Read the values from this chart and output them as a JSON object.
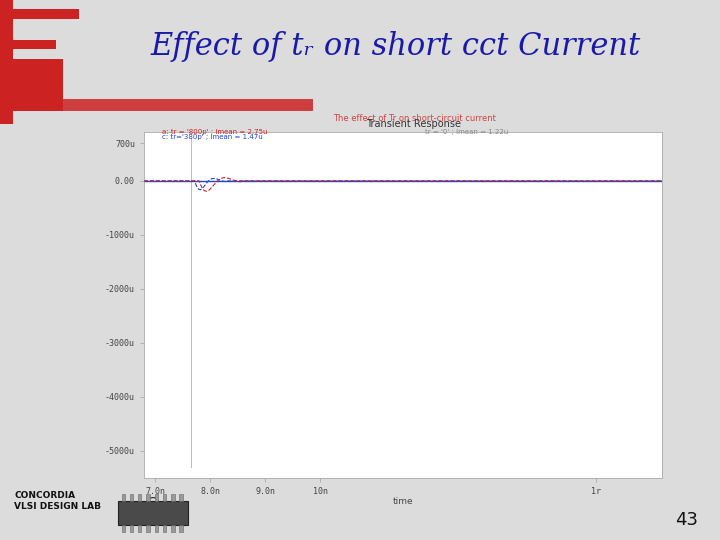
{
  "title_main": "Effect of tᵣ on short cct Current",
  "title_main_fontsize": 22,
  "title_main_color": "#1a1aaa",
  "slide_bg": "#dcdcdc",
  "header_bg": "#ffffff",
  "green_bar_color": "#44bb00",
  "red_accent_color": "#cc2222",
  "plot_title_top": "The effect of Tr on short-circuit current",
  "plot_title_top_color": "#cc4444",
  "plot_subtitle": "Transient Response",
  "plot_subtitle_color": "#333333",
  "legend_line1": "a: tr = '800p' ; Imean = 2.75u",
  "legend_line1_right": "tr = '0' ; Imean = 1.22u",
  "legend_line2": "c: tr='380p' ; Imean = 1.47u",
  "legend_color1": "#cc2222",
  "legend_color2": "#2244cc",
  "legend_color_right": "#888888",
  "xmin": 6.8,
  "xmax": 16.2,
  "ymin": -5500,
  "ymax": 900,
  "ytick_vals": [
    700,
    0,
    -1000,
    -2000,
    -3000,
    -4000,
    -5000
  ],
  "ytick_labels": [
    "700u",
    "0.00",
    "-1000u",
    "-2000u",
    "-3000u",
    "-4000u",
    "-5000u"
  ],
  "xtick_vals": [
    7.0,
    8.0,
    9.0,
    10.0,
    15.0
  ],
  "xtick_labels": [
    "7.0n",
    "8.0n",
    "9.0n",
    "10n",
    "1r"
  ],
  "xlabel": "time",
  "concordia_text": "CONCORDIA\nVLSI DESIGN LAB",
  "page_num": "43",
  "plot_bg": "#ffffff"
}
